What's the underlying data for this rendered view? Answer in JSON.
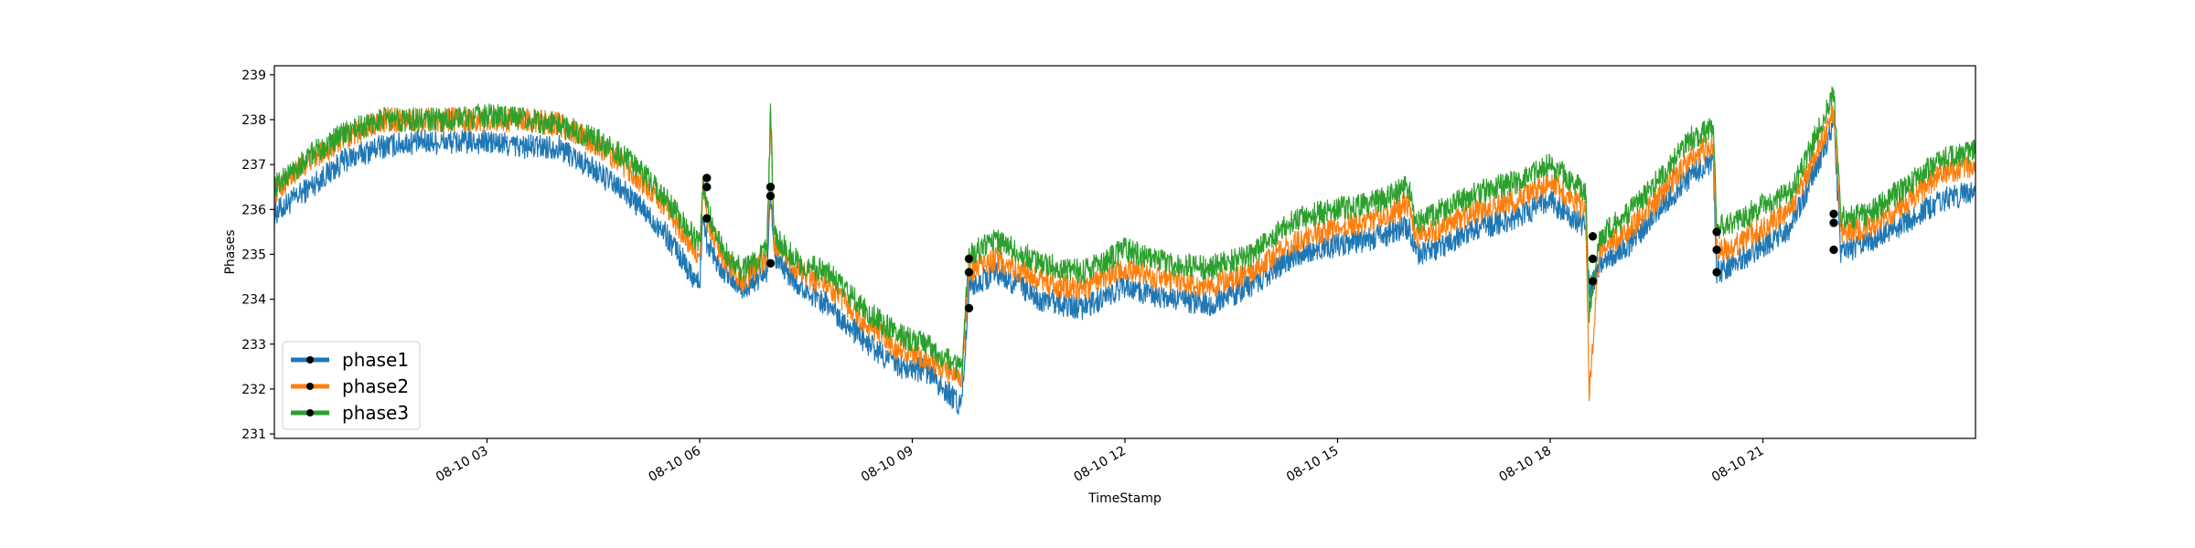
{
  "chart_data": {
    "type": "line",
    "title": "",
    "xlabel": "TimeStamp",
    "ylabel": "Phases",
    "ylim": [
      230.9,
      239.2
    ],
    "xlim_hours": [
      0,
      24
    ],
    "x_unit": "hours since 08-10 00:00",
    "y_ticks": [
      231,
      232,
      233,
      234,
      235,
      236,
      237,
      238,
      239
    ],
    "x_ticks": [
      {
        "x": 3,
        "label": "08-10 03"
      },
      {
        "x": 6,
        "label": "08-10 06"
      },
      {
        "x": 9,
        "label": "08-10 09"
      },
      {
        "x": 12,
        "label": "08-10 12"
      },
      {
        "x": 15,
        "label": "08-10 15"
      },
      {
        "x": 18,
        "label": "08-10 18"
      },
      {
        "x": 21,
        "label": "08-10 21"
      }
    ],
    "legend_position": "lower-left",
    "grid": false,
    "series": [
      {
        "name": "phase1",
        "color": "#1f77b4",
        "x": [
          0,
          0.5,
          1,
          1.5,
          2,
          2.5,
          3,
          3.5,
          4,
          4.5,
          5,
          5.5,
          6,
          6.05,
          6.1,
          6.3,
          6.6,
          6.95,
          7.0,
          7.05,
          7.4,
          7.8,
          8.3,
          8.8,
          9.2,
          9.7,
          9.8,
          10.2,
          10.8,
          11.4,
          12,
          12.6,
          13.2,
          13.8,
          14.4,
          15,
          15.6,
          16.0,
          16.1,
          16.5,
          17.0,
          17.5,
          18.0,
          18.5,
          18.55,
          18.7,
          19.1,
          19.5,
          20.0,
          20.3,
          20.35,
          20.6,
          21.0,
          21.4,
          21.9,
          22.0,
          22.1,
          22.5,
          23.0,
          23.5,
          24.0
        ],
        "values": [
          235.9,
          236.5,
          237.1,
          237.4,
          237.5,
          237.5,
          237.5,
          237.4,
          237.4,
          236.9,
          236.3,
          235.5,
          234.3,
          236.0,
          235.3,
          234.7,
          234.2,
          234.6,
          236.3,
          234.9,
          234.3,
          233.9,
          233.1,
          232.5,
          232.4,
          231.6,
          234.3,
          234.6,
          234.0,
          233.8,
          234.3,
          234.0,
          233.9,
          234.3,
          235.0,
          235.2,
          235.4,
          235.6,
          235.0,
          235.2,
          235.6,
          235.8,
          236.2,
          235.6,
          234.2,
          234.8,
          235.2,
          235.9,
          236.8,
          237.1,
          234.6,
          234.8,
          235.2,
          235.6,
          237.5,
          237.9,
          235.0,
          235.3,
          235.7,
          236.2,
          236.4
        ]
      },
      {
        "name": "phase2",
        "color": "#ff7f0e",
        "x": [
          0,
          0.5,
          1,
          1.5,
          2,
          2.5,
          3,
          3.5,
          4,
          4.5,
          5,
          5.5,
          6,
          6.05,
          6.1,
          6.3,
          6.6,
          6.95,
          7.0,
          7.05,
          7.4,
          7.8,
          8.3,
          8.8,
          9.2,
          9.7,
          9.8,
          10.2,
          10.8,
          11.4,
          12,
          12.6,
          13.2,
          13.8,
          14.4,
          15,
          15.6,
          16.0,
          16.1,
          16.5,
          17.0,
          17.5,
          18.0,
          18.5,
          18.55,
          18.7,
          19.1,
          19.5,
          20.0,
          20.3,
          20.35,
          20.6,
          21.0,
          21.4,
          21.9,
          22.0,
          22.1,
          22.5,
          23.0,
          23.5,
          24.0
        ],
        "values": [
          236.4,
          237.1,
          237.6,
          238.0,
          238.0,
          238.0,
          238.0,
          238.0,
          237.9,
          237.5,
          236.9,
          236.1,
          234.9,
          236.7,
          235.8,
          235.0,
          234.4,
          234.9,
          238.0,
          235.2,
          234.6,
          234.3,
          233.5,
          232.9,
          232.7,
          232.2,
          234.6,
          234.9,
          234.4,
          234.2,
          234.7,
          234.4,
          234.3,
          234.6,
          235.3,
          235.6,
          235.8,
          236.1,
          235.4,
          235.6,
          236.0,
          236.2,
          236.6,
          236.0,
          232.0,
          235.1,
          235.5,
          236.2,
          237.2,
          237.4,
          235.1,
          235.2,
          235.6,
          236.0,
          237.8,
          238.2,
          235.5,
          235.6,
          236.1,
          236.8,
          237.0
        ]
      },
      {
        "name": "phase3",
        "color": "#2ca02c",
        "x": [
          0,
          0.5,
          1,
          1.5,
          2,
          2.5,
          3,
          3.5,
          4,
          4.5,
          5,
          5.5,
          6,
          6.05,
          6.1,
          6.3,
          6.6,
          6.95,
          7.0,
          7.05,
          7.4,
          7.8,
          8.3,
          8.8,
          9.2,
          9.7,
          9.8,
          10.2,
          10.8,
          11.4,
          12,
          12.6,
          13.2,
          13.8,
          14.4,
          15,
          15.6,
          16.0,
          16.1,
          16.5,
          17.0,
          17.5,
          18.0,
          18.5,
          18.55,
          18.7,
          19.1,
          19.5,
          20.0,
          20.3,
          20.35,
          20.6,
          21.0,
          21.4,
          21.9,
          22.0,
          22.1,
          22.5,
          23.0,
          23.5,
          24.0
        ],
        "values": [
          236.5,
          237.2,
          237.7,
          238.0,
          238.0,
          238.0,
          238.1,
          238.0,
          237.9,
          237.6,
          237.1,
          236.3,
          235.2,
          236.6,
          236.0,
          235.2,
          234.6,
          235.1,
          238.2,
          235.4,
          234.8,
          234.6,
          233.8,
          233.2,
          233.0,
          232.4,
          235.0,
          235.3,
          234.8,
          234.6,
          235.1,
          234.8,
          234.7,
          235.0,
          235.8,
          236.0,
          236.2,
          236.5,
          235.7,
          236.0,
          236.4,
          236.6,
          237.0,
          236.4,
          233.7,
          235.4,
          235.9,
          236.6,
          237.6,
          237.8,
          235.6,
          235.7,
          236.1,
          236.4,
          238.2,
          238.6,
          235.8,
          235.9,
          236.5,
          237.1,
          237.3
        ]
      }
    ],
    "markers": [
      {
        "series": "phase1",
        "points": [
          [
            6.1,
            235.8
          ],
          [
            7.0,
            234.8
          ],
          [
            9.8,
            233.8
          ],
          [
            18.6,
            234.4
          ],
          [
            20.35,
            234.6
          ],
          [
            22.0,
            235.1
          ]
        ]
      },
      {
        "series": "phase2",
        "points": [
          [
            6.1,
            236.7
          ],
          [
            7.0,
            236.3
          ],
          [
            9.8,
            234.6
          ],
          [
            18.6,
            234.9
          ],
          [
            20.35,
            235.1
          ],
          [
            22.0,
            235.9
          ]
        ]
      },
      {
        "series": "phase3",
        "points": [
          [
            6.1,
            236.5
          ],
          [
            7.0,
            236.5
          ],
          [
            9.8,
            234.9
          ],
          [
            18.6,
            235.4
          ],
          [
            20.35,
            235.5
          ],
          [
            22.0,
            235.7
          ]
        ]
      }
    ]
  }
}
